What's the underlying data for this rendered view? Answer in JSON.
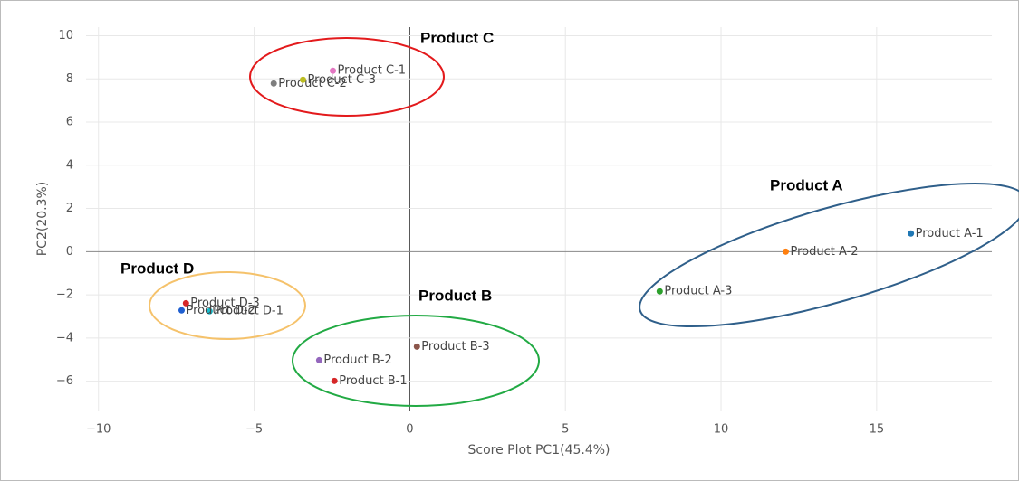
{
  "chart_data": {
    "type": "scatter",
    "x_label": "Score Plot PC1(45.4%)",
    "y_label": "PC2(20.3%)",
    "annotations": [
      "Product C",
      "Product A",
      "Product D",
      "Product B"
    ],
    "xlim": [
      -10.4,
      18.7
    ],
    "ylim": [
      -7.4,
      10.4
    ],
    "xticks": [
      {
        "value": -10,
        "label": "−10"
      },
      {
        "value": -5,
        "label": "−5"
      },
      0,
      5,
      10,
      15
    ],
    "yticks": [
      {
        "value": -6,
        "label": "−6"
      },
      {
        "value": -4,
        "label": "−4"
      },
      {
        "value": -2,
        "label": "−2"
      },
      0,
      2,
      4,
      6,
      8,
      10
    ],
    "grid": true,
    "series": [
      {
        "name": "Product A-1",
        "color": "#1f77b4",
        "x": [
          16.1
        ],
        "values": [
          0.84
        ]
      },
      {
        "name": "Product A-2",
        "color": "#ff7f0e",
        "x": [
          12.08
        ],
        "values": [
          0
        ]
      },
      {
        "name": "Product A-3",
        "color": "#2ca02c",
        "x": [
          8.03
        ],
        "values": [
          -1.84
        ]
      },
      {
        "name": "Product B-1",
        "color": "#d62728",
        "x": [
          -2.42
        ],
        "values": [
          -5.99
        ]
      },
      {
        "name": "Product B-2",
        "color": "#9467bd",
        "x": [
          -2.91
        ],
        "values": [
          -5.03
        ]
      },
      {
        "name": "Product B-3",
        "color": "#8c564b",
        "x": [
          0.23
        ],
        "values": [
          -4.4
        ]
      },
      {
        "name": "Product C-1",
        "color": "#e377c2",
        "x": [
          -2.47
        ],
        "values": [
          8.38
        ]
      },
      {
        "name": "Product C-2",
        "color": "#7f7f7f",
        "x": [
          -4.37
        ],
        "values": [
          7.79
        ]
      },
      {
        "name": "Product C-3",
        "color": "#bcbd22",
        "x": [
          -3.43
        ],
        "values": [
          7.96
        ]
      },
      {
        "name": "Product D-1",
        "color": "#17becf",
        "x": [
          -6.43
        ],
        "values": [
          -2.76
        ]
      },
      {
        "name": "Product D-2",
        "color": "#1f5fd0",
        "x": [
          -7.33
        ],
        "values": [
          -2.72
        ]
      },
      {
        "name": "Product D-3",
        "color": "#d62728",
        "x": [
          -7.19
        ],
        "values": [
          -2.39
        ]
      }
    ]
  }
}
